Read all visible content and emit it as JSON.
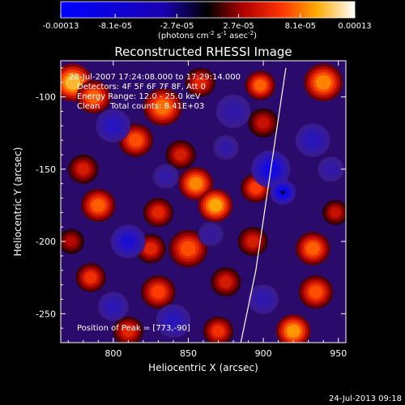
{
  "chart_data": {
    "type": "heatmap",
    "title": "Reconstructed RHESSI Image",
    "xlabel": "Heliocentric X (arcsec)",
    "ylabel": "Heliocentric Y (arcsec)",
    "xlim": [
      765,
      955
    ],
    "ylim": [
      -270,
      -75
    ],
    "x_ticks": [
      800,
      850,
      900,
      950
    ],
    "y_ticks": [
      -250,
      -200,
      -150,
      -100
    ],
    "x_tick_labels": [
      "800",
      "850",
      "900",
      "950"
    ],
    "y_tick_labels": [
      "-250",
      "-200",
      "-150",
      "-100"
    ],
    "colorbar": {
      "min": -0.00013,
      "max": 0.00013,
      "tick_labels": [
        "-0.00013",
        "-8.1e-05",
        "-2.7e-05",
        "2.7e-05",
        "8.1e-05",
        "0.00013"
      ],
      "unit_text": "(photons cm",
      "unit_exp1": "-2",
      "unit_mid": " s",
      "unit_exp2": "-1",
      "unit_mid2": " asec",
      "unit_exp3": "-2",
      "unit_end": ")"
    },
    "annotations": {
      "time": "28-Jul-2007 17:24:08.000 to 17:29:14.000",
      "detectors": "Detectors: 4F 5F 6F 7F 8F, Att 0",
      "energy": "Energy Range: 12.0 - 25.0 keV",
      "clean": "Clean    Total counts: 8.41E+03",
      "peak": "Position of Peak = [773,-90]"
    },
    "peak_position": [
      773,
      -90
    ],
    "sources": [
      {
        "x": 773,
        "y": -90,
        "v": 1.0,
        "w": 9
      },
      {
        "x": 787,
        "y": -100,
        "v": 0.75,
        "w": 8
      },
      {
        "x": 833,
        "y": -107,
        "v": 0.8,
        "w": 9
      },
      {
        "x": 858,
        "y": -90,
        "v": 0.55,
        "w": 7
      },
      {
        "x": 898,
        "y": -92,
        "v": 0.75,
        "w": 7
      },
      {
        "x": 940,
        "y": -90,
        "v": 0.85,
        "w": 9
      },
      {
        "x": 815,
        "y": -130,
        "v": 0.7,
        "w": 8
      },
      {
        "x": 845,
        "y": -140,
        "v": 0.5,
        "w": 7
      },
      {
        "x": 900,
        "y": -118,
        "v": 0.45,
        "w": 7
      },
      {
        "x": 780,
        "y": -150,
        "v": 0.5,
        "w": 7
      },
      {
        "x": 855,
        "y": -160,
        "v": 0.85,
        "w": 8
      },
      {
        "x": 868,
        "y": -175,
        "v": 0.95,
        "w": 8
      },
      {
        "x": 830,
        "y": -180,
        "v": 0.55,
        "w": 7
      },
      {
        "x": 895,
        "y": -163,
        "v": 0.65,
        "w": 7
      },
      {
        "x": 790,
        "y": -175,
        "v": 0.75,
        "w": 8
      },
      {
        "x": 850,
        "y": -205,
        "v": 0.7,
        "w": 9
      },
      {
        "x": 825,
        "y": -205,
        "v": 0.55,
        "w": 7
      },
      {
        "x": 893,
        "y": -200,
        "v": 0.5,
        "w": 7
      },
      {
        "x": 933,
        "y": -205,
        "v": 0.75,
        "w": 8
      },
      {
        "x": 948,
        "y": -180,
        "v": 0.45,
        "w": 6
      },
      {
        "x": 785,
        "y": -225,
        "v": 0.6,
        "w": 7
      },
      {
        "x": 830,
        "y": -235,
        "v": 0.65,
        "w": 8
      },
      {
        "x": 875,
        "y": -228,
        "v": 0.5,
        "w": 7
      },
      {
        "x": 935,
        "y": -235,
        "v": 0.7,
        "w": 8
      },
      {
        "x": 810,
        "y": -262,
        "v": 0.55,
        "w": 7
      },
      {
        "x": 870,
        "y": -262,
        "v": 0.6,
        "w": 7
      },
      {
        "x": 920,
        "y": -262,
        "v": 0.9,
        "w": 8
      },
      {
        "x": 772,
        "y": -200,
        "v": 0.4,
        "w": 6
      },
      {
        "x": 800,
        "y": -120,
        "v": -0.6,
        "w": 8
      },
      {
        "x": 905,
        "y": -150,
        "v": -0.9,
        "w": 9
      },
      {
        "x": 913,
        "y": -166,
        "v": -1.0,
        "w": 6
      },
      {
        "x": 933,
        "y": -130,
        "v": -0.55,
        "w": 8
      },
      {
        "x": 810,
        "y": -200,
        "v": -0.75,
        "w": 8
      },
      {
        "x": 840,
        "y": -255,
        "v": -0.55,
        "w": 8
      },
      {
        "x": 880,
        "y": -110,
        "v": -0.4,
        "w": 8
      },
      {
        "x": 875,
        "y": -135,
        "v": -0.35,
        "w": 6
      },
      {
        "x": 800,
        "y": -245,
        "v": -0.5,
        "w": 7
      },
      {
        "x": 900,
        "y": -240,
        "v": -0.45,
        "w": 7
      },
      {
        "x": 945,
        "y": -150,
        "v": -0.4,
        "w": 6
      },
      {
        "x": 865,
        "y": -195,
        "v": -0.3,
        "w": 6
      },
      {
        "x": 835,
        "y": -155,
        "v": -0.35,
        "w": 6
      }
    ],
    "limb_curve": [
      [
        915,
        -80
      ],
      [
        905,
        -150
      ],
      [
        895,
        -220
      ],
      [
        885,
        -270
      ]
    ]
  },
  "footer": {
    "date": "24-Jul-2013 09:18"
  }
}
